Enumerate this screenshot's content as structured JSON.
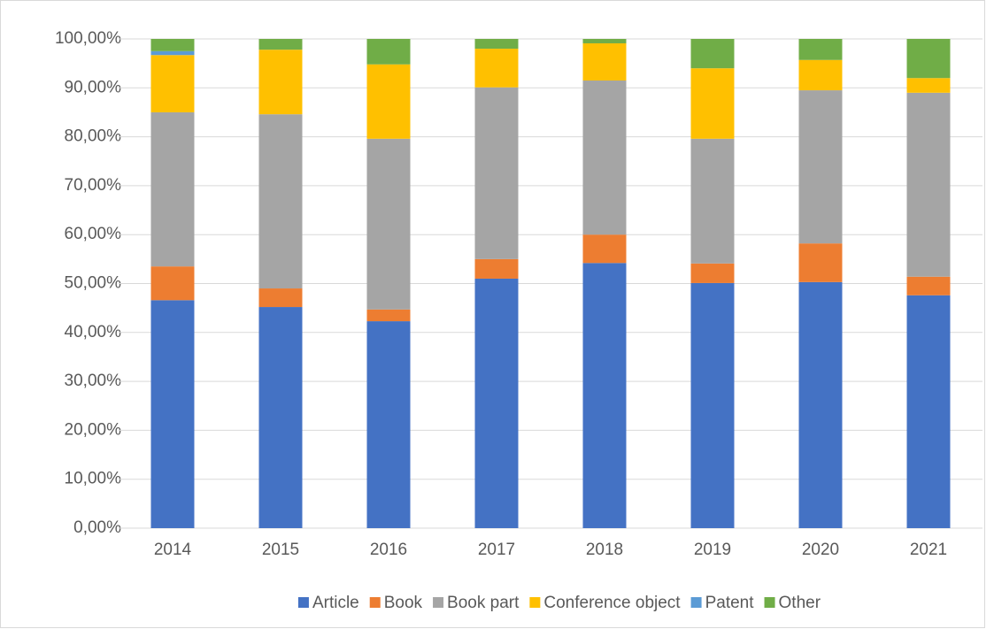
{
  "chart_data": {
    "type": "stacked_bar",
    "categories": [
      "2014",
      "2015",
      "2016",
      "2017",
      "2018",
      "2019",
      "2020",
      "2021"
    ],
    "series": [
      {
        "name": "Article",
        "color": "#4472c4",
        "values": [
          46.6,
          45.2,
          42.3,
          51.0,
          54.2,
          50.1,
          50.3,
          47.6
        ]
      },
      {
        "name": "Book",
        "color": "#ed7d31",
        "values": [
          6.9,
          3.8,
          2.4,
          4.0,
          5.8,
          4.0,
          7.9,
          3.8
        ]
      },
      {
        "name": "Book part",
        "color": "#a5a5a5",
        "values": [
          31.5,
          35.6,
          34.9,
          35.1,
          31.5,
          25.5,
          31.3,
          37.6
        ]
      },
      {
        "name": "Conference object",
        "color": "#ffc000",
        "values": [
          11.7,
          13.2,
          15.2,
          7.9,
          7.6,
          14.4,
          6.2,
          3.0
        ]
      },
      {
        "name": "Patent",
        "color": "#5b9bd5",
        "values": [
          0.8,
          0,
          0,
          0,
          0,
          0,
          0,
          0
        ]
      },
      {
        "name": "Other",
        "color": "#70ad47",
        "values": [
          2.5,
          2.2,
          5.2,
          2.0,
          0.9,
          6.0,
          4.3,
          8.0
        ]
      }
    ],
    "ylim": [
      0,
      100
    ],
    "yticks": [
      {
        "value": 0,
        "label": "0,00%"
      },
      {
        "value": 10,
        "label": "10,00%"
      },
      {
        "value": 20,
        "label": "20,00%"
      },
      {
        "value": 30,
        "label": "30,00%"
      },
      {
        "value": 40,
        "label": "40,00%"
      },
      {
        "value": 50,
        "label": "50,00%"
      },
      {
        "value": 60,
        "label": "60,00%"
      },
      {
        "value": 70,
        "label": "70,00%"
      },
      {
        "value": 80,
        "label": "80,00%"
      },
      {
        "value": 90,
        "label": "90,00%"
      },
      {
        "value": 100,
        "label": "100,00%"
      }
    ],
    "grid": true,
    "legend": "bottom"
  }
}
